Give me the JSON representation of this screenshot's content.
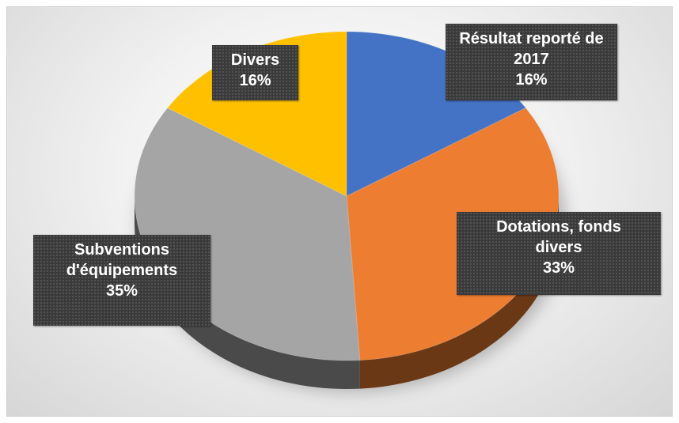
{
  "chart_data": {
    "type": "pie3d",
    "categories": [
      "Résultat reporté de 2017",
      "Dotations, fonds divers",
      "Subventions d'équipements",
      "Divers"
    ],
    "values": [
      16,
      33,
      35,
      16
    ],
    "value_labels": [
      "16%",
      "33%",
      "35%",
      "16%"
    ],
    "colors": [
      "#4472c4",
      "#ed7d31",
      "#a5a5a5",
      "#ffc000"
    ]
  }
}
